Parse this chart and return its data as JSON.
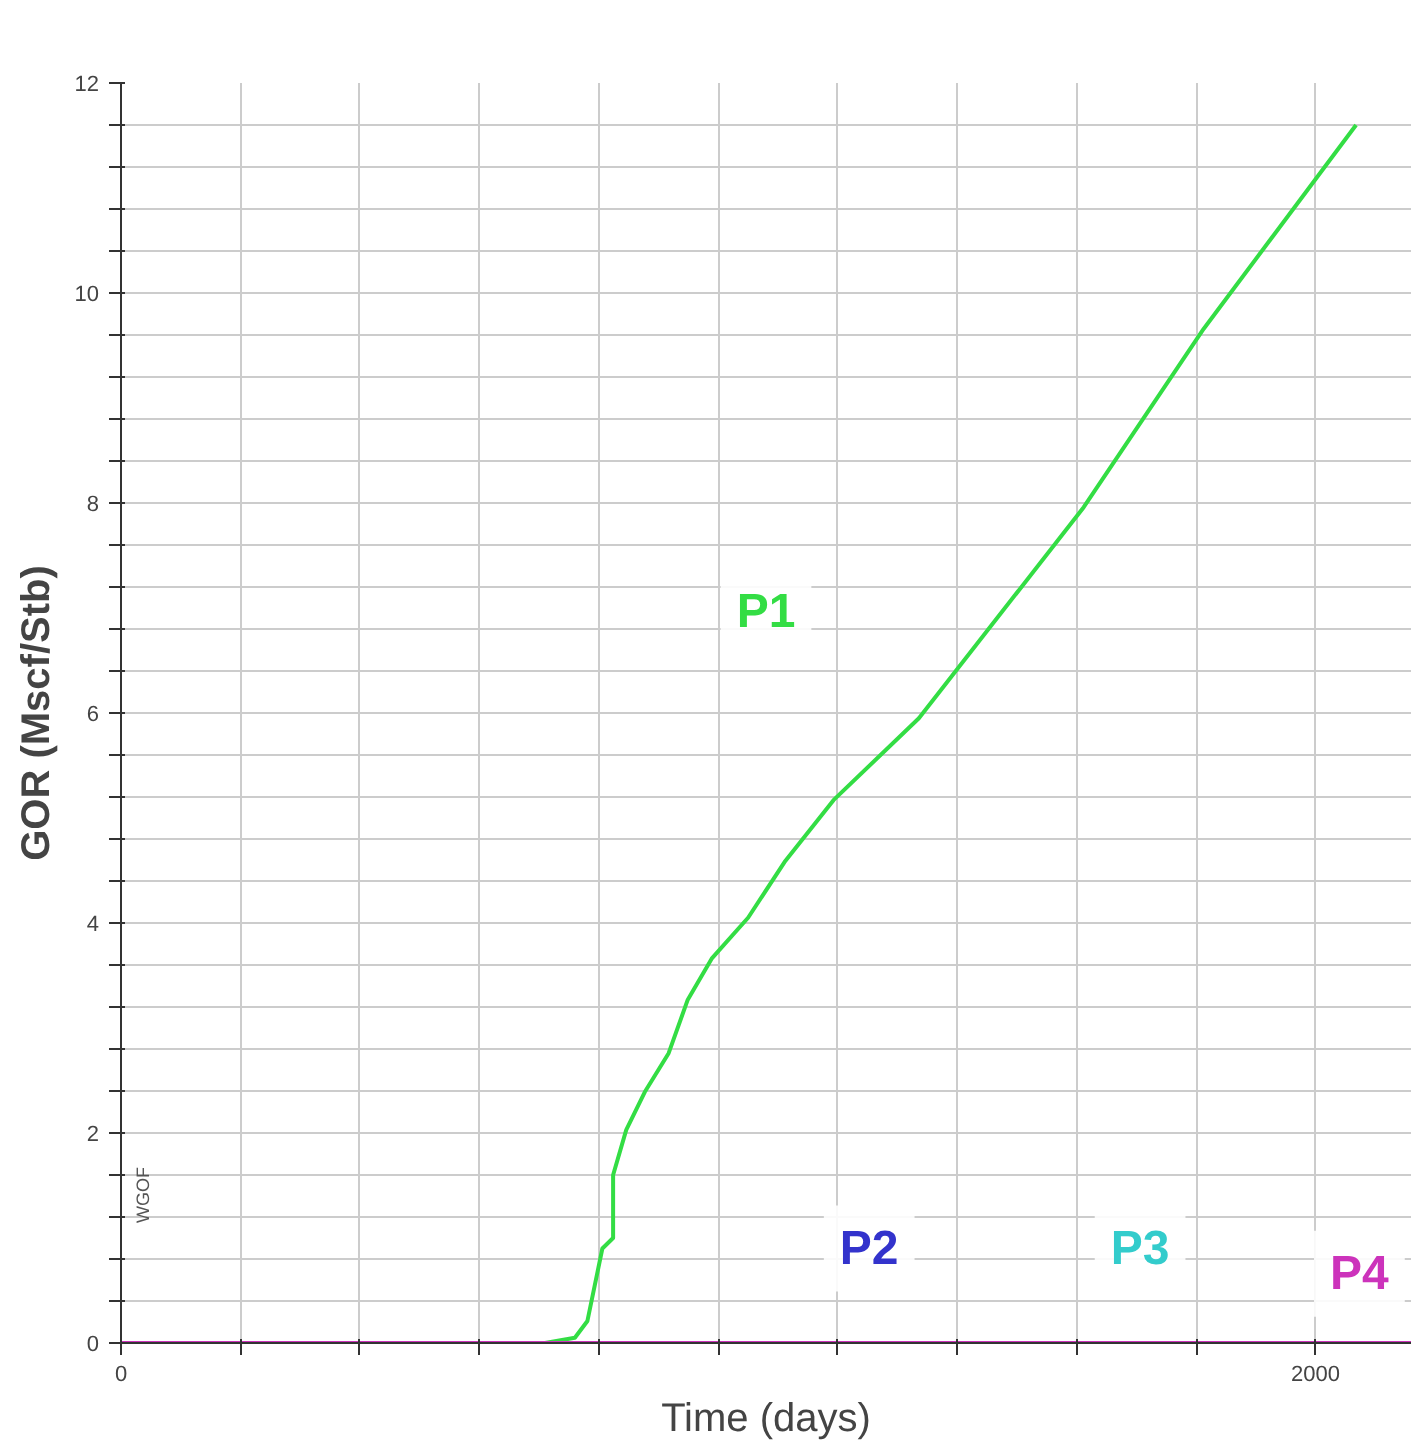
{
  "chart_data": {
    "type": "line",
    "xlabel": "Time (days)",
    "ylabel": "GOR (Mscf/Stb)",
    "annotations": [
      "WGOF"
    ],
    "xlim": [
      0,
      2160
    ],
    "ylim": [
      0,
      12
    ],
    "xticks": [
      0,
      {
        "value": 200,
        "label": null
      },
      {
        "value": 400,
        "label": null
      },
      {
        "value": 600,
        "label": null
      },
      {
        "value": 800,
        "label": null
      },
      {
        "value": 1000,
        "label": null
      },
      {
        "value": 1200,
        "label": null
      },
      {
        "value": 1400,
        "label": null
      },
      {
        "value": 1600,
        "label": null
      },
      {
        "value": 1800,
        "label": null
      },
      2000
    ],
    "yticks": [
      0,
      {
        "value": 0.4,
        "label": null
      },
      {
        "value": 0.8,
        "label": null
      },
      {
        "value": 1.2,
        "label": null
      },
      {
        "value": 1.6,
        "label": null
      },
      2,
      {
        "value": 2.4,
        "label": null
      },
      {
        "value": 2.8,
        "label": null
      },
      {
        "value": 3.2,
        "label": null
      },
      {
        "value": 3.6,
        "label": null
      },
      4,
      {
        "value": 4.4,
        "label": null
      },
      {
        "value": 4.8,
        "label": null
      },
      {
        "value": 5.2,
        "label": null
      },
      {
        "value": 5.6,
        "label": null
      },
      6,
      {
        "value": 6.4,
        "label": null
      },
      {
        "value": 6.8,
        "label": null
      },
      {
        "value": 7.2,
        "label": null
      },
      {
        "value": 7.6,
        "label": null
      },
      8,
      {
        "value": 8.4,
        "label": null
      },
      {
        "value": 8.8,
        "label": null
      },
      {
        "value": 9.2,
        "label": null
      },
      {
        "value": 9.6,
        "label": null
      },
      10,
      {
        "value": 10.4,
        "label": null
      },
      {
        "value": 10.8,
        "label": null
      },
      {
        "value": 11.2,
        "label": null
      },
      {
        "value": 11.6,
        "label": null
      },
      12
    ],
    "grid": true,
    "marker": "none",
    "line_style": "solid",
    "series": [
      {
        "name": "P1",
        "color": "#33dd44",
        "x": [
          0,
          710,
          760,
          781,
          806,
          824,
          824,
          846,
          877,
          917,
          949,
          989,
          1050,
          1111,
          1193,
          1336,
          1612,
          1813,
          2068
        ],
        "values": [
          0,
          0,
          0.05,
          0.21,
          0.9,
          1.0,
          1.6,
          2.03,
          2.39,
          2.76,
          3.27,
          3.66,
          4.05,
          4.58,
          5.17,
          5.95,
          7.96,
          9.66,
          11.6
        ]
      },
      {
        "name": "P2",
        "color": "#3333cc",
        "values": [
          null
        ]
      },
      {
        "name": "P3",
        "color": "#33cccc",
        "values": [
          null
        ]
      },
      {
        "name": "P4",
        "color": "#cc33bb",
        "x": [
          0,
          2160
        ],
        "values": [
          0,
          0
        ]
      }
    ]
  }
}
